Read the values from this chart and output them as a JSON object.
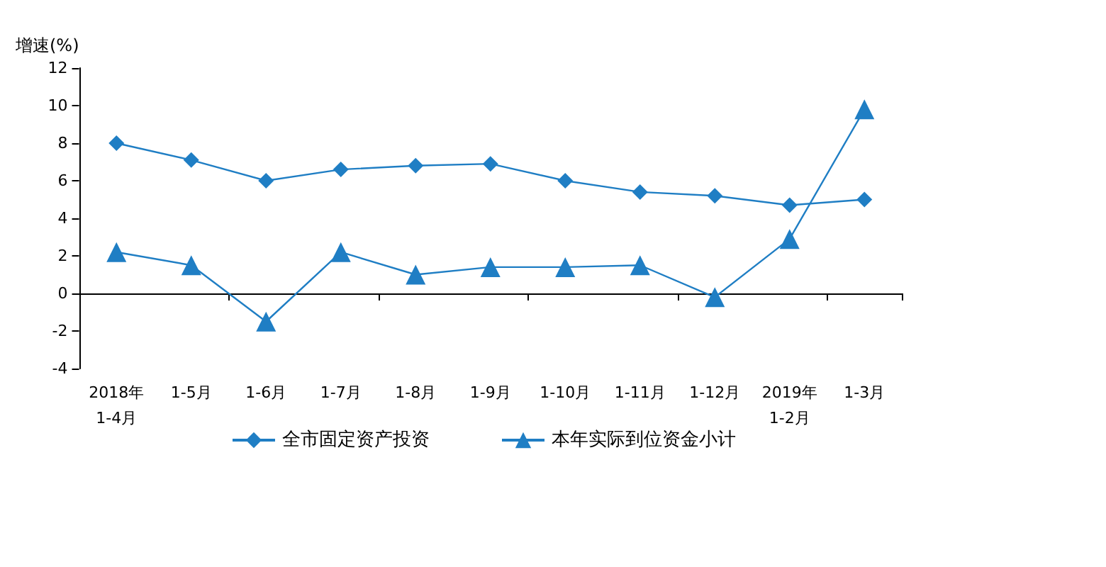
{
  "chart_data": {
    "type": "line",
    "ylabel": "增速(%)",
    "categories": [
      "2018年\n1-4月",
      "1-5月",
      "1-6月",
      "1-7月",
      "1-8月",
      "1-9月",
      "1-10月",
      "1-11月",
      "1-12月",
      "2019年\n1-2月",
      "1-3月"
    ],
    "series": [
      {
        "name": "全市固定资产投资",
        "color": "#1f7ec4",
        "marker": "diamond",
        "values": [
          8.0,
          7.1,
          6.0,
          6.6,
          6.8,
          6.9,
          6.0,
          5.4,
          5.2,
          4.7,
          5.0
        ]
      },
      {
        "name": "本年实际到位资金小计",
        "color": "#1f7ec4",
        "marker": "triangle",
        "values": [
          2.2,
          1.5,
          -1.5,
          2.2,
          1.0,
          1.4,
          1.4,
          1.5,
          -0.2,
          2.9,
          9.8
        ]
      }
    ],
    "ylim": [
      -4,
      12
    ],
    "yticks": [
      -4,
      -2,
      0,
      2,
      4,
      6,
      8,
      10,
      12
    ],
    "legend": "bottom",
    "line_style": "solid"
  }
}
